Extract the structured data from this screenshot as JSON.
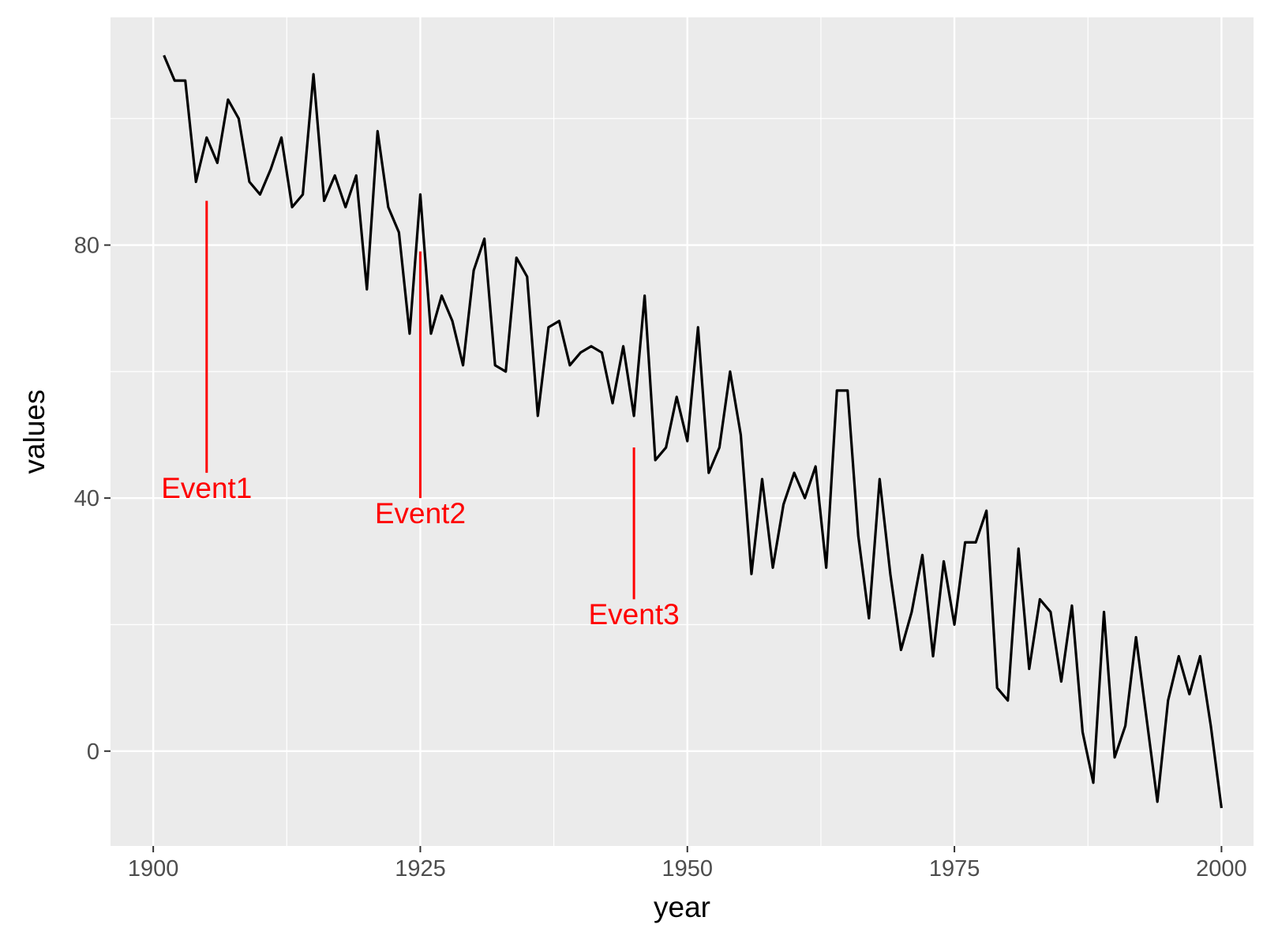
{
  "chart_data": {
    "type": "line",
    "title": "",
    "xlabel": "year",
    "ylabel": "values",
    "xlim": [
      1896,
      2003
    ],
    "ylim": [
      -15,
      116
    ],
    "x_ticks": [
      1900,
      1925,
      1950,
      1975,
      2000
    ],
    "x_tick_labels": [
      "1900",
      "1925",
      "1950",
      "1975",
      "2000"
    ],
    "y_ticks": [
      0,
      40,
      80
    ],
    "y_tick_labels": [
      "0",
      "40",
      "80"
    ],
    "grid": true,
    "legend": "none",
    "colors": {
      "panel": "#ebebeb",
      "grid": "#ffffff",
      "line": "#000000",
      "annotation": "#ff0000",
      "tick_text": "#4d4d4d"
    },
    "series": [
      {
        "x": [
          1901,
          1902,
          1903,
          1904,
          1905,
          1906,
          1907,
          1908,
          1909,
          1910,
          1911,
          1912,
          1913,
          1914,
          1915,
          1916,
          1917,
          1918,
          1919,
          1920,
          1921,
          1922,
          1923,
          1924,
          1925,
          1926,
          1927,
          1928,
          1929,
          1930,
          1931,
          1932,
          1933,
          1934,
          1935,
          1936,
          1937,
          1938,
          1939,
          1940,
          1941,
          1942,
          1943,
          1944,
          1945,
          1946,
          1947,
          1948,
          1949,
          1950,
          1951,
          1952,
          1953,
          1954,
          1955,
          1956,
          1957,
          1958,
          1959,
          1960,
          1961,
          1962,
          1963,
          1964,
          1965,
          1966,
          1967,
          1968,
          1969,
          1970,
          1971,
          1972,
          1973,
          1974,
          1975,
          1976,
          1977,
          1978,
          1979,
          1980,
          1981,
          1982,
          1983,
          1984,
          1985,
          1986,
          1987,
          1988,
          1989,
          1990,
          1991,
          1992,
          1993,
          1994,
          1995,
          1996,
          1997,
          1998,
          1999,
          2000
        ],
        "values": [
          110,
          106,
          106,
          90,
          97,
          93,
          103,
          100,
          90,
          88,
          92,
          97,
          86,
          88,
          107,
          87,
          91,
          86,
          91,
          73,
          98,
          86,
          82,
          66,
          88,
          66,
          72,
          68,
          61,
          76,
          81,
          61,
          60,
          78,
          75,
          53,
          67,
          68,
          61,
          63,
          64,
          63,
          55,
          64,
          53,
          72,
          46,
          48,
          56,
          49,
          67,
          44,
          48,
          60,
          50,
          28,
          43,
          29,
          39,
          44,
          40,
          45,
          29,
          57,
          57,
          34,
          21,
          43,
          28,
          16,
          22,
          31,
          15,
          30,
          20,
          33,
          33,
          38,
          10,
          8,
          32,
          13,
          24,
          22,
          11,
          23,
          3,
          -5,
          22,
          -1,
          4,
          18,
          5,
          -8,
          8,
          15,
          9,
          15,
          4,
          -9
        ]
      }
    ],
    "annotations": [
      {
        "label": "Event1",
        "x": 1905,
        "y_top": 87,
        "y_bottom": 44
      },
      {
        "label": "Event2",
        "x": 1925,
        "y_top": 79,
        "y_bottom": 40
      },
      {
        "label": "Event3",
        "x": 1945,
        "y_top": 48,
        "y_bottom": 24
      }
    ]
  }
}
